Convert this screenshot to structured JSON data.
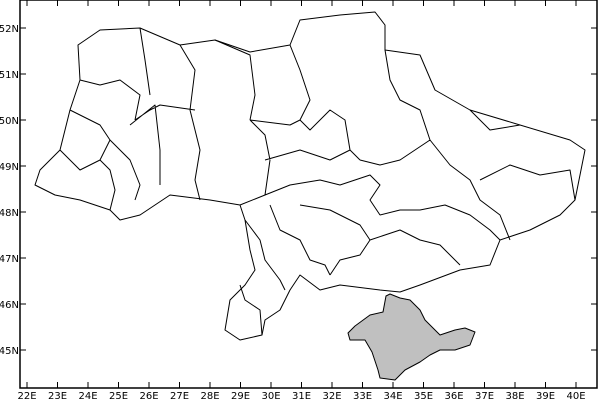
{
  "map": {
    "lon_labels": [
      "22E",
      "23E",
      "24E",
      "25E",
      "26E",
      "27E",
      "28E",
      "29E",
      "30E",
      "31E",
      "32E",
      "33E",
      "34E",
      "35E",
      "36E",
      "37E",
      "38E",
      "39E",
      "40E"
    ],
    "lat_labels": [
      "45N",
      "46N",
      "47N",
      "48N",
      "49N",
      "50N",
      "51N",
      "52N"
    ],
    "lon_range": [
      22,
      40
    ],
    "lat_range": [
      45,
      52
    ],
    "highlighted_region": "Crimea",
    "colors": {
      "highlight": "#c0c0c0",
      "border": "#000000",
      "background": "#ffffff"
    }
  }
}
